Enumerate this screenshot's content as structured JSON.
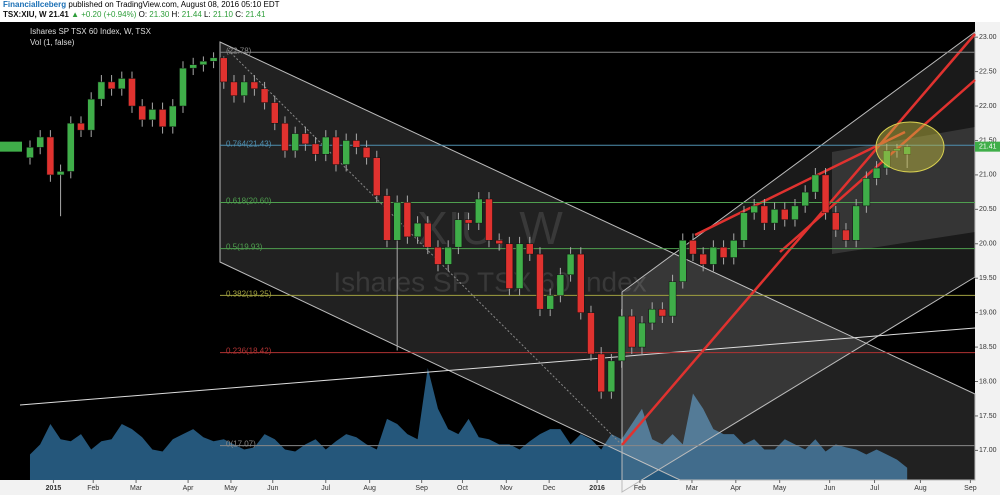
{
  "header": {
    "author": "FinancialIceberg",
    "published": "published on TradingView.com, August 08, 2016 05:10 EDT",
    "symbol": "TSX:XIU, W",
    "last": "21.41",
    "change": "▲ +0.20 (+0.94%)",
    "ohlc": [
      {
        "label": "O:",
        "value": "21.30"
      },
      {
        "label": "H:",
        "value": "21.44"
      },
      {
        "label": "L:",
        "value": "21.10"
      },
      {
        "label": "C:",
        "value": "21.41"
      }
    ]
  },
  "chart_data": {
    "type": "candlestick",
    "legend": [
      "Ishares SP TSX 60 Index, W, TSX",
      "Vol (1, false)"
    ],
    "watermark": {
      "symbol": "XIU, W",
      "name": "Ishares SP TSX 60 Index"
    },
    "up_color": "#3fae49",
    "down_color": "#e0322f",
    "open": [
      21.25,
      21.4,
      21.55,
      21.0,
      21.05,
      21.75,
      21.65,
      22.1,
      22.35,
      22.25,
      22.4,
      22.0,
      21.8,
      21.95,
      21.7,
      22.0,
      22.55,
      22.6,
      22.65,
      22.7,
      22.35,
      22.15,
      22.35,
      22.25,
      22.05,
      21.75,
      21.35,
      21.6,
      21.45,
      21.3,
      21.55,
      21.15,
      21.5,
      21.4,
      21.25,
      20.7,
      20.05,
      20.6,
      20.1,
      20.3,
      19.95,
      19.7,
      19.95,
      20.35,
      20.3,
      20.65,
      20.05,
      20.0,
      19.35,
      20.0,
      19.85,
      19.05,
      19.25,
      19.55,
      19.85,
      19.0,
      18.4,
      17.85,
      18.3,
      18.95,
      18.5,
      18.85,
      19.05,
      18.95,
      19.45,
      20.05,
      19.85,
      19.7,
      19.95,
      19.8,
      20.05,
      20.45,
      20.55,
      20.3,
      20.5,
      20.35,
      20.55,
      20.75,
      21.0,
      20.45,
      20.2,
      20.05,
      20.55,
      20.95,
      21.1,
      21.35,
      21.3
    ],
    "high": [
      21.5,
      21.65,
      21.65,
      21.15,
      21.85,
      21.85,
      22.2,
      22.45,
      22.45,
      22.5,
      22.5,
      22.1,
      22.05,
      22.05,
      22.1,
      22.65,
      22.7,
      22.72,
      22.78,
      22.72,
      22.45,
      22.45,
      22.45,
      22.35,
      22.15,
      21.85,
      21.7,
      21.7,
      21.55,
      21.65,
      21.65,
      21.6,
      21.6,
      21.5,
      21.35,
      20.8,
      20.7,
      20.7,
      20.4,
      20.4,
      20.05,
      20.05,
      20.45,
      20.45,
      20.75,
      20.75,
      20.15,
      20.1,
      20.1,
      20.1,
      19.95,
      19.35,
      19.65,
      19.95,
      19.95,
      19.1,
      18.5,
      18.4,
      19.05,
      19.05,
      18.95,
      19.15,
      19.15,
      19.55,
      20.15,
      20.15,
      19.95,
      20.05,
      20.05,
      20.15,
      20.55,
      20.65,
      20.65,
      20.6,
      20.6,
      20.65,
      20.85,
      21.1,
      21.1,
      20.55,
      20.3,
      20.65,
      21.05,
      21.2,
      21.45,
      21.45,
      21.44
    ],
    "low": [
      21.15,
      21.3,
      20.9,
      20.4,
      20.95,
      21.55,
      21.55,
      22.0,
      22.15,
      22.15,
      21.9,
      21.7,
      21.7,
      21.6,
      21.6,
      21.9,
      22.45,
      22.5,
      22.55,
      22.25,
      22.05,
      22.05,
      22.15,
      21.95,
      21.65,
      21.25,
      21.25,
      21.35,
      21.2,
      21.2,
      21.05,
      21.05,
      21.3,
      21.15,
      20.6,
      19.95,
      18.45,
      20.0,
      20.0,
      19.85,
      19.6,
      19.6,
      19.85,
      20.2,
      20.2,
      19.95,
      19.9,
      19.25,
      19.25,
      19.75,
      18.95,
      18.95,
      19.15,
      19.45,
      18.9,
      18.3,
      17.75,
      17.75,
      18.2,
      18.4,
      18.4,
      18.75,
      18.85,
      18.85,
      19.35,
      19.75,
      19.6,
      19.6,
      19.7,
      19.7,
      19.95,
      20.35,
      20.2,
      20.2,
      20.25,
      20.25,
      20.45,
      20.65,
      20.35,
      20.1,
      19.95,
      19.95,
      20.45,
      20.85,
      21.0,
      21.25,
      21.1
    ],
    "close": [
      21.4,
      21.55,
      21.0,
      21.05,
      21.75,
      21.65,
      22.1,
      22.35,
      22.25,
      22.4,
      22.0,
      21.8,
      21.95,
      21.7,
      22.0,
      22.55,
      22.6,
      22.65,
      22.7,
      22.35,
      22.15,
      22.35,
      22.25,
      22.05,
      21.75,
      21.35,
      21.6,
      21.45,
      21.3,
      21.55,
      21.15,
      21.5,
      21.4,
      21.25,
      20.7,
      20.05,
      20.6,
      20.1,
      20.3,
      19.95,
      19.7,
      19.95,
      20.35,
      20.3,
      20.65,
      20.05,
      20.0,
      19.35,
      20.0,
      19.85,
      19.05,
      19.25,
      19.55,
      19.85,
      19.0,
      18.4,
      17.85,
      18.3,
      18.95,
      18.5,
      18.85,
      19.05,
      18.95,
      19.45,
      20.05,
      19.85,
      19.7,
      19.95,
      19.8,
      20.05,
      20.45,
      20.55,
      20.3,
      20.5,
      20.35,
      20.55,
      20.75,
      21.0,
      20.45,
      20.2,
      20.05,
      20.55,
      20.95,
      21.1,
      21.35,
      21.38,
      21.41
    ],
    "volume": {
      "color": "#2b6690",
      "values": [
        25,
        35,
        55,
        40,
        38,
        45,
        30,
        38,
        40,
        55,
        50,
        42,
        30,
        28,
        40,
        45,
        50,
        42,
        38,
        40,
        35,
        30,
        32,
        45,
        40,
        30,
        28,
        35,
        40,
        30,
        38,
        45,
        42,
        35,
        30,
        60,
        55,
        45,
        40,
        110,
        70,
        50,
        45,
        60,
        42,
        40,
        35,
        35,
        30,
        38,
        45,
        50,
        50,
        35,
        45,
        40,
        30,
        45,
        40,
        55,
        70,
        40,
        35,
        45,
        35,
        85,
        70,
        50,
        45,
        45,
        35,
        40,
        30,
        30,
        40,
        35,
        30,
        40,
        28,
        35,
        32,
        30,
        25,
        30,
        25,
        20,
        12
      ]
    },
    "fib_levels": [
      {
        "label": "(22.78)",
        "value": 22.78,
        "color": "#888888"
      },
      {
        "label": "0.764(21.43)",
        "value": 21.43,
        "color": "#4f8fb0"
      },
      {
        "label": "0.618(20.60)",
        "value": 20.6,
        "color": "#4f9f4f"
      },
      {
        "label": "0.5(19.93)",
        "value": 19.93,
        "color": "#4f9f4f"
      },
      {
        "label": "0.382(19.25)",
        "value": 19.25,
        "color": "#a0a040"
      },
      {
        "label": "0.236(18.42)",
        "value": 18.42,
        "color": "#b03333"
      },
      {
        "label": "0(17.07)",
        "value": 17.07,
        "color": "#888888"
      }
    ],
    "last_price": {
      "label": "21.41",
      "value": 21.41,
      "color": "#3fae49"
    },
    "xlim": [
      -2.94,
      92.65
    ],
    "ylim": [
      16.57,
      23.22
    ],
    "yticks": [
      {
        "value": 17,
        "label": "17.00"
      },
      {
        "value": 17.5,
        "label": "17.50"
      },
      {
        "value": 18,
        "label": "18.00"
      },
      {
        "value": 18.5,
        "label": "18.50"
      },
      {
        "value": 19,
        "label": "19.00"
      },
      {
        "value": 19.5,
        "label": "19.50"
      },
      {
        "value": 20,
        "label": "20.00"
      },
      {
        "value": 20.5,
        "label": "20.50"
      },
      {
        "value": 21,
        "label": "21.00"
      },
      {
        "value": 21.5,
        "label": "21.50"
      },
      {
        "value": 22,
        "label": "22.00"
      },
      {
        "value": 22.5,
        "label": "22.50"
      },
      {
        "value": 23,
        "label": "23.00"
      }
    ],
    "xticks": [
      {
        "value": 2.3,
        "label": "2015"
      },
      {
        "value": 6.2,
        "label": "Feb"
      },
      {
        "value": 10.4,
        "label": "Mar"
      },
      {
        "value": 15.5,
        "label": "Apr"
      },
      {
        "value": 19.7,
        "label": "May"
      },
      {
        "value": 23.8,
        "label": "Jun"
      },
      {
        "value": 29.0,
        "label": "Jul"
      },
      {
        "value": 33.3,
        "label": "Aug"
      },
      {
        "value": 38.4,
        "label": "Sep"
      },
      {
        "value": 42.4,
        "label": "Oct"
      },
      {
        "value": 46.7,
        "label": "Nov"
      },
      {
        "value": 50.9,
        "label": "Dec"
      },
      {
        "value": 55.6,
        "label": "2016"
      },
      {
        "value": 59.8,
        "label": "Feb"
      },
      {
        "value": 64.9,
        "label": "Mar"
      },
      {
        "value": 69.2,
        "label": "Apr"
      },
      {
        "value": 73.5,
        "label": "May"
      },
      {
        "value": 78.4,
        "label": "Jun"
      },
      {
        "value": 82.8,
        "label": "Jul"
      },
      {
        "value": 87.3,
        "label": "Aug"
      },
      {
        "value": 92.2,
        "label": "Sep"
      }
    ]
  }
}
